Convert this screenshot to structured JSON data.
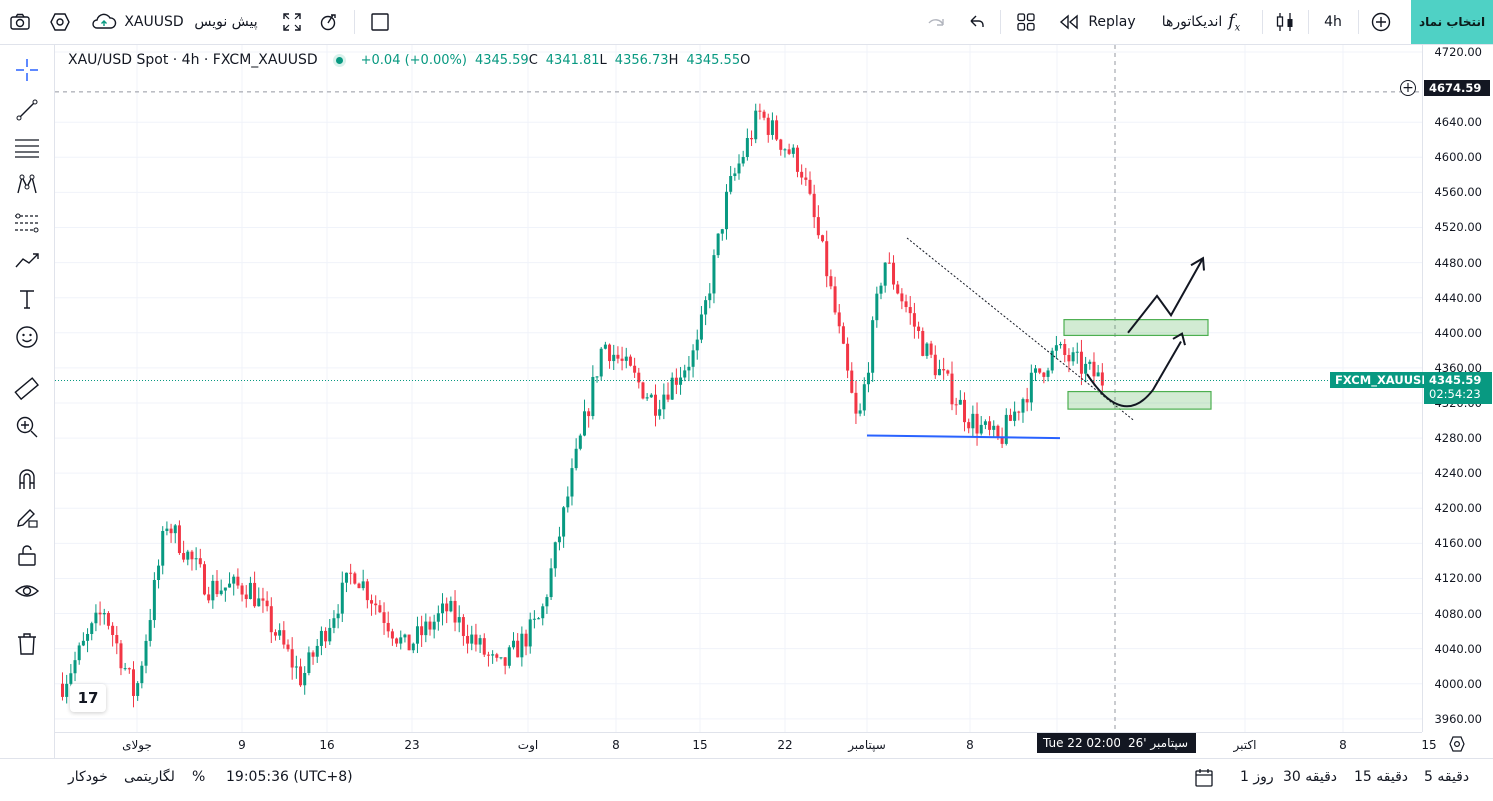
{
  "topbar": {
    "symbol": "XAUUSD",
    "draft_label": "پیش نویس",
    "replay_label": "Replay",
    "indicators_label": "اندیکاتورها",
    "interval": "4h",
    "choose_symbol_label": "انتخاب نماد"
  },
  "legend": {
    "title": "XAU/USD Spot · 4h · FXCM_XAUUSD",
    "change": "+0.04 (+0.00%)",
    "close_value": "4345.59",
    "close_key": "C",
    "low_value": "4341.81",
    "low_key": "L",
    "high_value": "4356.73",
    "high_key": "H",
    "open_value": "4345.55",
    "open_key": "O"
  },
  "price_axis": {
    "labels": [
      "4720.00",
      "4640.00",
      "4600.00",
      "4560.00",
      "4520.00",
      "4480.00",
      "4440.00",
      "4400.00",
      "4360.00",
      "4320.00",
      "4280.00",
      "4240.00",
      "4200.00",
      "4160.00",
      "4120.00",
      "4080.00",
      "4040.00",
      "4000.00",
      "3960.00"
    ],
    "crosshair_price": "4674.59",
    "symbol_tag": "FXCM_XAUUSD",
    "last_price": "4345.59",
    "countdown": "02:54:23"
  },
  "time_axis": {
    "labels": [
      "جولای",
      "9",
      "16",
      "23",
      "اوت",
      "8",
      "15",
      "22",
      "سپتامبر",
      "8",
      "15",
      "اکتبر",
      "8",
      "15"
    ],
    "crosshair_time": "Tue 22 02:00",
    "crosshair_month": "سپتامبر '26"
  },
  "bottombar": {
    "ranges": [
      "5 دقیقه",
      "15 دقیقه",
      "30 دقیقه",
      "1 روز"
    ],
    "time": "19:05:36 (UTC+8)",
    "percent": "%",
    "log": "لگاریتمی",
    "auto": "خودکار"
  },
  "chart_data": {
    "type": "candlestick",
    "title": "XAU/USD Spot · 4h · FXCM_XAUUSD",
    "ylim": [
      3945,
      4728
    ],
    "up_color": "#089981",
    "down_color": "#f23645",
    "trend": [
      {
        "t": 0.0,
        "p": 4000
      },
      {
        "t": 0.04,
        "p": 4085
      },
      {
        "t": 0.07,
        "p": 3985
      },
      {
        "t": 0.1,
        "p": 4185
      },
      {
        "t": 0.14,
        "p": 4110
      },
      {
        "t": 0.18,
        "p": 4110
      },
      {
        "t": 0.23,
        "p": 4005
      },
      {
        "t": 0.28,
        "p": 4130
      },
      {
        "t": 0.33,
        "p": 4040
      },
      {
        "t": 0.37,
        "p": 4085
      },
      {
        "t": 0.42,
        "p": 4015
      },
      {
        "t": 0.46,
        "p": 4075
      },
      {
        "t": 0.49,
        "p": 4235
      },
      {
        "t": 0.52,
        "p": 4390
      },
      {
        "t": 0.57,
        "p": 4320
      },
      {
        "t": 0.61,
        "p": 4380
      },
      {
        "t": 0.64,
        "p": 4560
      },
      {
        "t": 0.67,
        "p": 4650
      },
      {
        "t": 0.71,
        "p": 4590
      },
      {
        "t": 0.735,
        "p": 4470
      },
      {
        "t": 0.765,
        "p": 4290
      },
      {
        "t": 0.79,
        "p": 4485
      },
      {
        "t": 0.83,
        "p": 4380
      },
      {
        "t": 0.87,
        "p": 4305
      },
      {
        "t": 0.9,
        "p": 4275
      },
      {
        "t": 0.93,
        "p": 4340
      },
      {
        "t": 0.955,
        "p": 4380
      },
      {
        "t": 1.0,
        "p": 4346
      }
    ]
  },
  "colors": {
    "accent": "#4fd1c5",
    "up": "#089981",
    "down": "#f23645",
    "zone": "#4caf50",
    "support": "#2962ff"
  }
}
